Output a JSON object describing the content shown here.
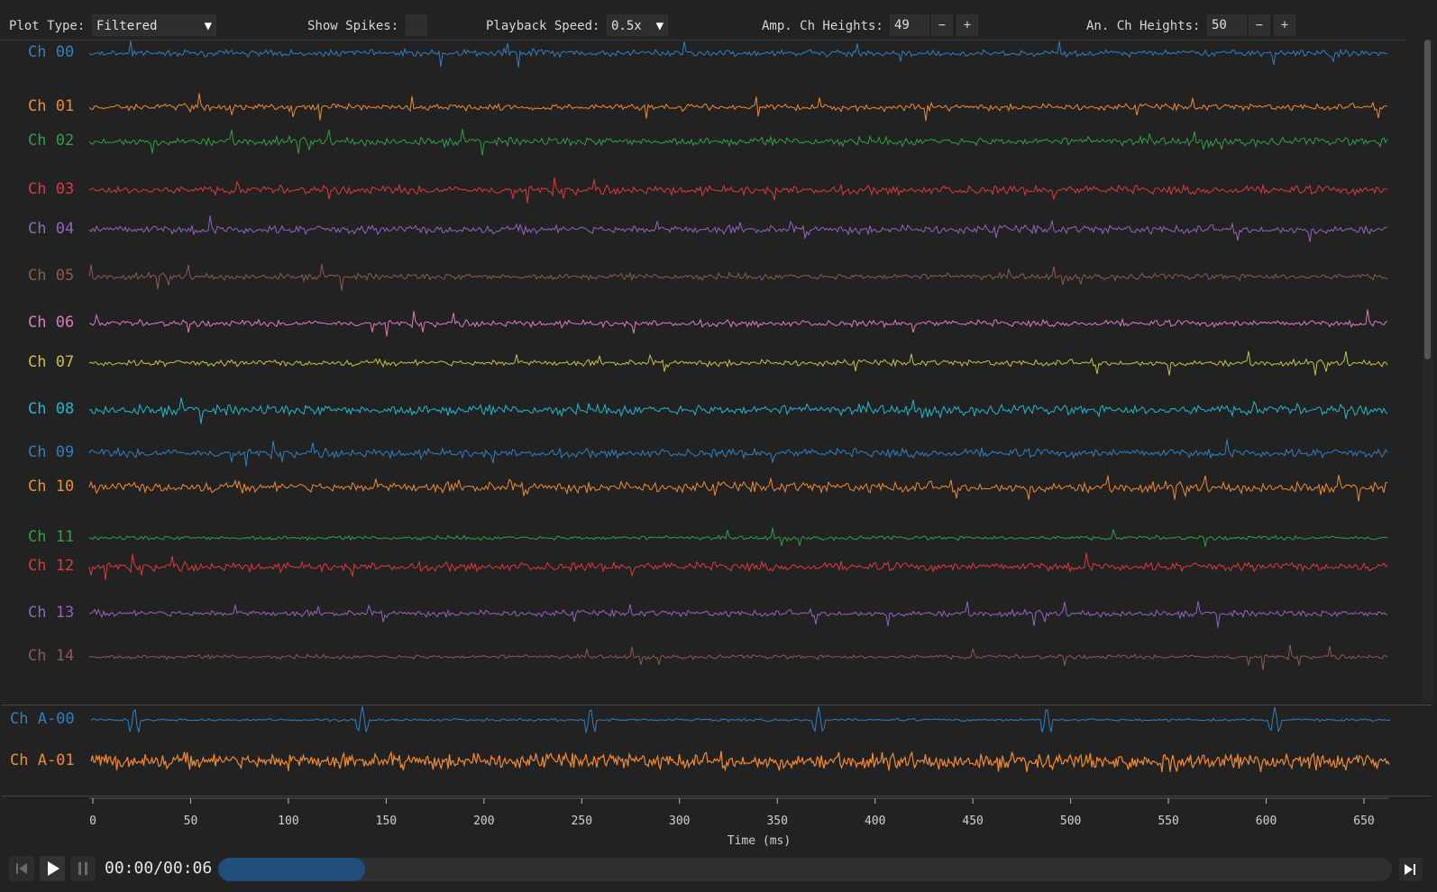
{
  "toolbar": {
    "plot_type_label": "Plot Type:",
    "plot_type_value": "Filtered",
    "show_spikes_label": "Show Spikes:",
    "playback_speed_label": "Playback Speed:",
    "playback_speed_value": "0.5x",
    "amp_heights_label": "Amp. Ch Heights:",
    "amp_heights_value": "49",
    "an_heights_label": "An. Ch Heights:",
    "an_heights_value": "50",
    "minus": "−",
    "plus": "+"
  },
  "channels": [
    {
      "label": "Ch 00",
      "color": "#2f7fc1"
    },
    {
      "label": "Ch 01",
      "color": "#f28a30"
    },
    {
      "label": "Ch 02",
      "color": "#2ea043"
    },
    {
      "label": "Ch 03",
      "color": "#e0383a"
    },
    {
      "label": "Ch 04",
      "color": "#9463bf"
    },
    {
      "label": "Ch 05",
      "color": "#8c5a4f"
    },
    {
      "label": "Ch 06",
      "color": "#e07ac4"
    },
    {
      "label": "Ch 07",
      "color": "#c7c23a"
    },
    {
      "label": "Ch 08",
      "color": "#1fb8cf"
    },
    {
      "label": "Ch 09",
      "color": "#2f7fc1"
    },
    {
      "label": "Ch 10",
      "color": "#f28a30"
    },
    {
      "label": "Ch 11",
      "color": "#2ea043"
    },
    {
      "label": "Ch 12",
      "color": "#e0383a"
    },
    {
      "label": "Ch 13",
      "color": "#9463bf"
    },
    {
      "label": "Ch 14",
      "color": "#8c5a4f"
    }
  ],
  "analog_channels": [
    {
      "label": "Ch A-00",
      "color": "#2f7fc1"
    },
    {
      "label": "Ch A-01",
      "color": "#f28a30"
    }
  ],
  "axis": {
    "ticks": [
      "0",
      "50",
      "100",
      "150",
      "200",
      "250",
      "300",
      "350",
      "400",
      "450",
      "500",
      "550",
      "600",
      "650"
    ],
    "xlabel": "Time (ms)",
    "xlim": [
      0,
      664
    ]
  },
  "playback": {
    "time_text": "00:00/00:06",
    "progress": 0.125
  }
}
